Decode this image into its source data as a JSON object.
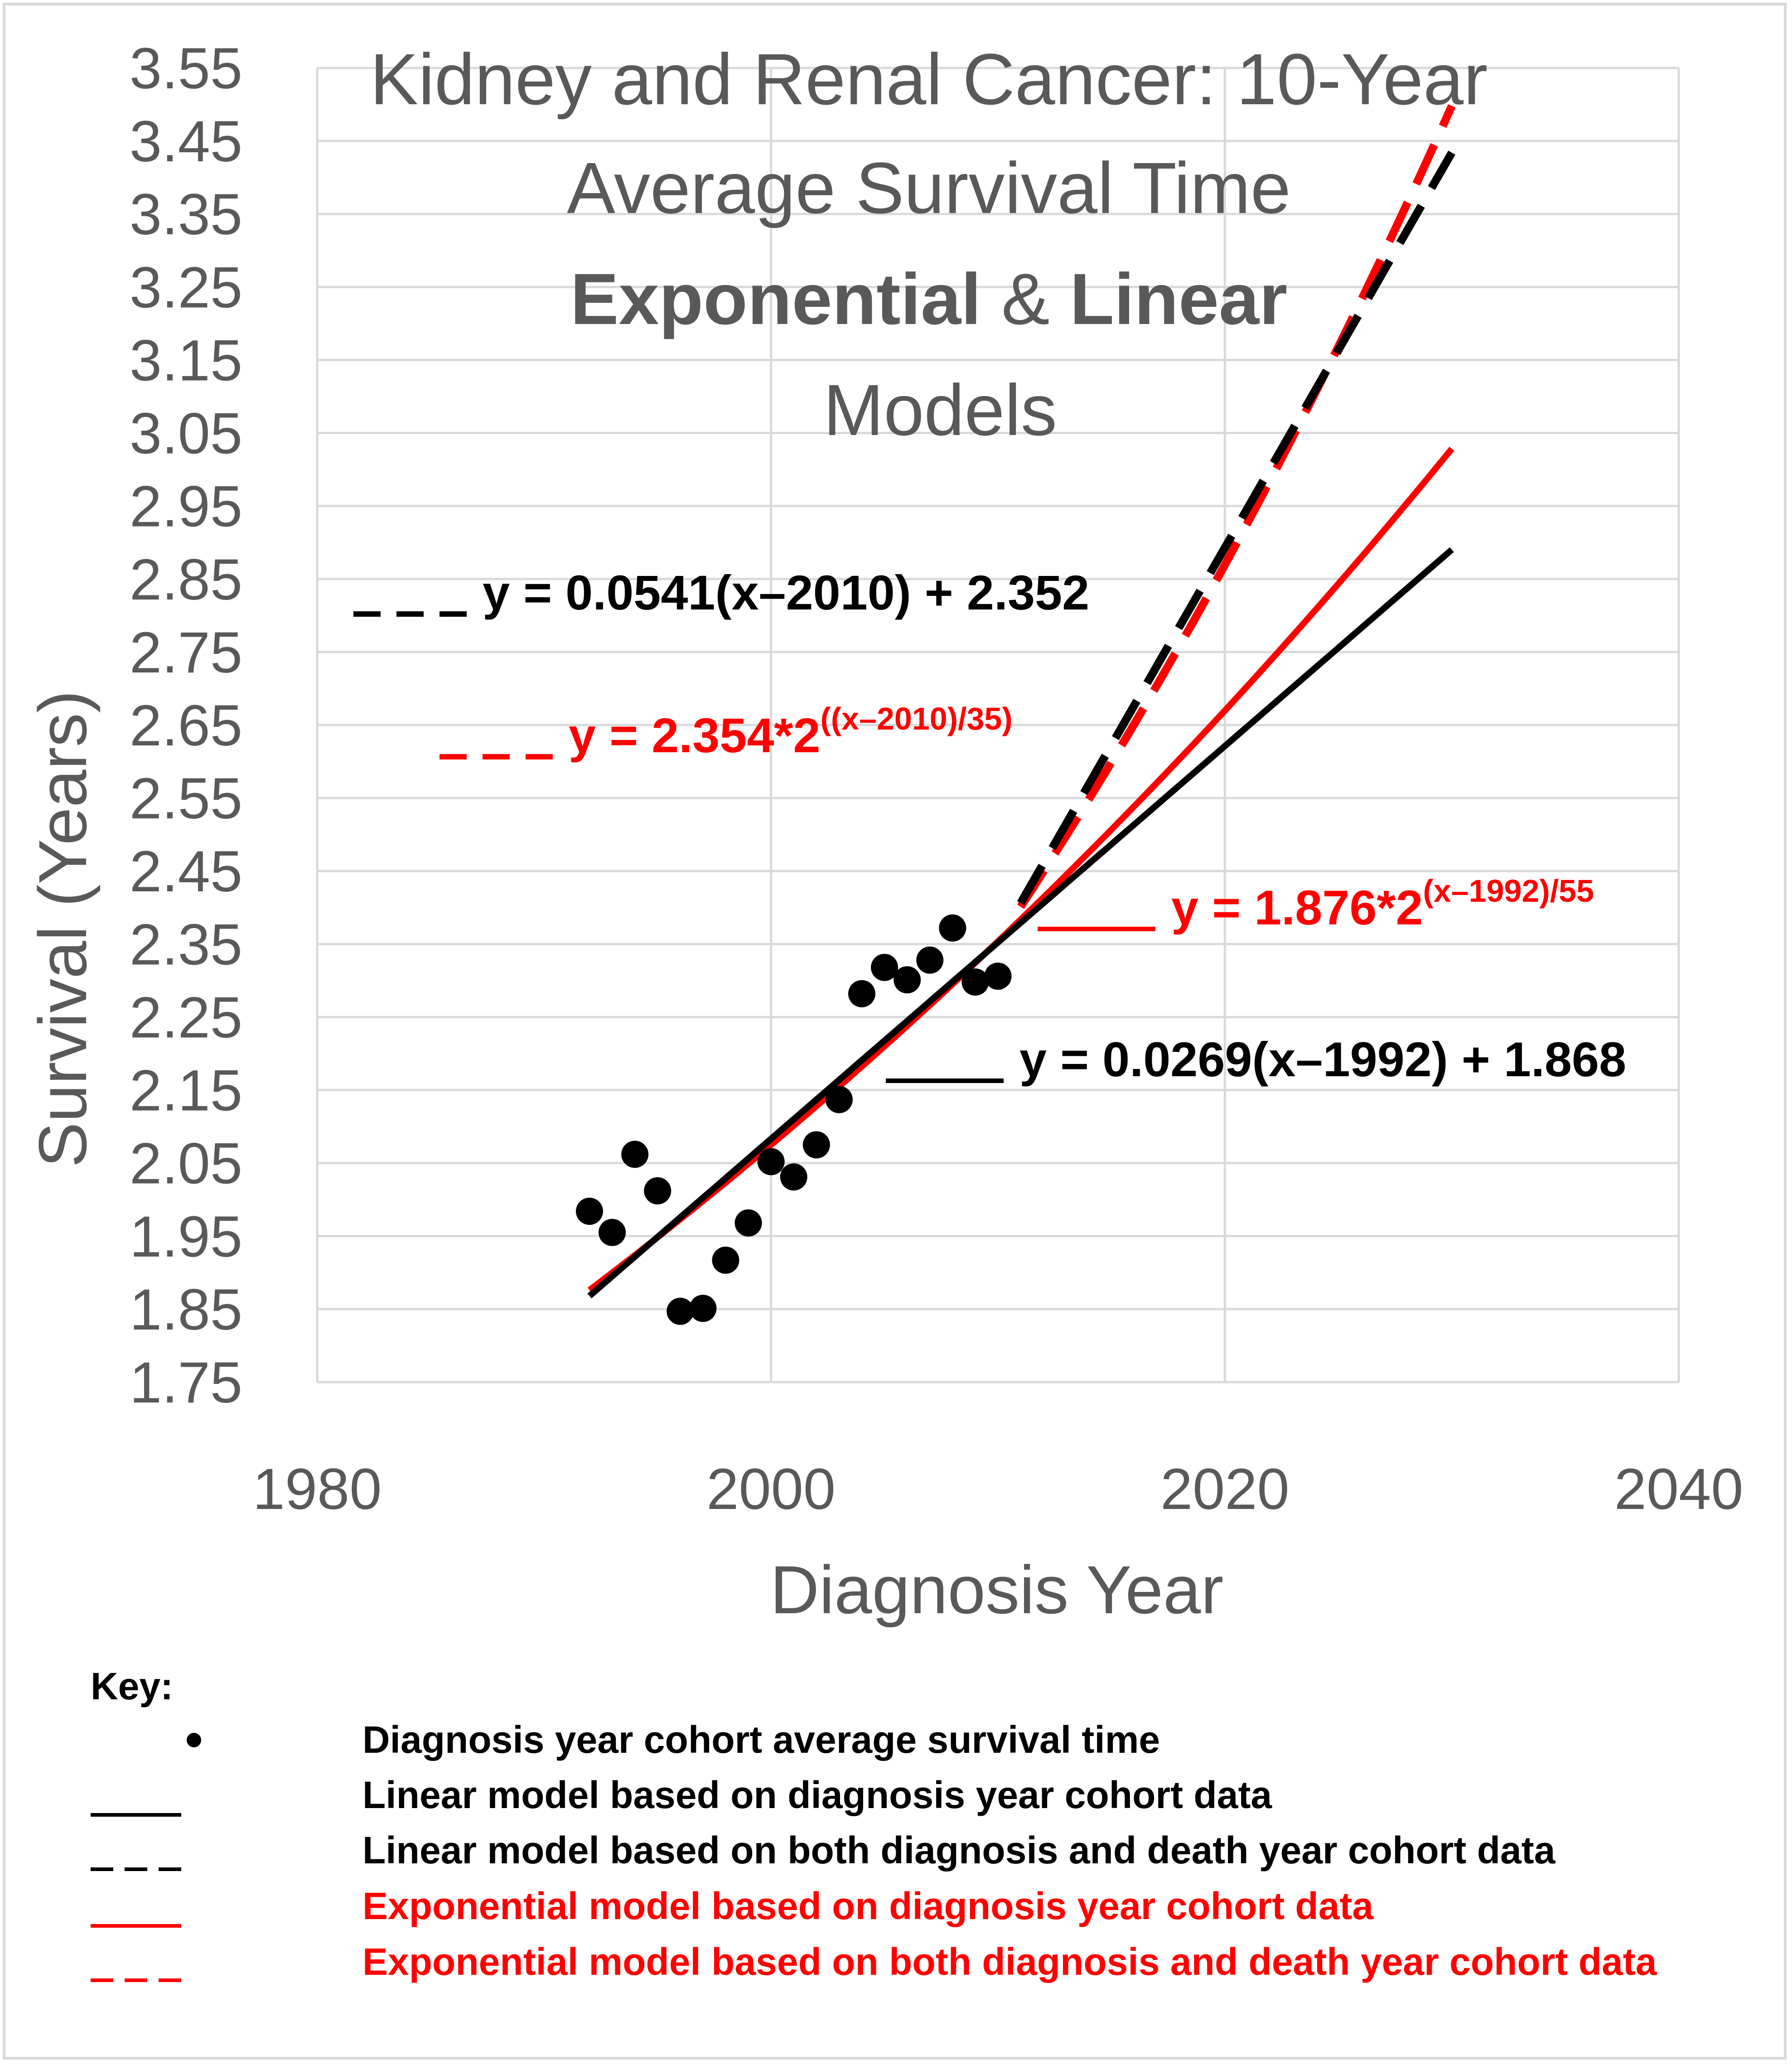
{
  "chart_data": {
    "type": "scatter",
    "title_lines": [
      "Kidney and Renal Cancer: 10-Year",
      "Average Survival Time"
    ],
    "title_model_word_1": "Exponential",
    "title_amp": " & ",
    "title_model_word_2": "Linear",
    "title_last": "Models",
    "xlabel": "Diagnosis Year",
    "ylabel": "Survival (Years)",
    "xlim": [
      1980,
      2040
    ],
    "ylim": [
      1.75,
      3.55
    ],
    "x_ticks": [
      "1980",
      "2000",
      "2020",
      "2040"
    ],
    "y_ticks": [
      "1.75",
      "1.85",
      "1.95",
      "2.05",
      "2.15",
      "2.25",
      "2.35",
      "2.45",
      "2.55",
      "2.65",
      "2.75",
      "2.85",
      "2.95",
      "3.05",
      "3.15",
      "3.25",
      "3.35",
      "3.45",
      "3.55"
    ],
    "points": {
      "name": "Diagnosis year cohort average survival time",
      "x": [
        1992,
        1993,
        1994,
        1995,
        1996,
        1997,
        1998,
        1999,
        2000,
        2001,
        2002,
        2003,
        2004,
        2005,
        2006,
        2007,
        2008,
        2009,
        2010
      ],
      "y": [
        1.984,
        1.955,
        2.062,
        2.012,
        1.847,
        1.851,
        1.917,
        1.968,
        2.052,
        2.031,
        2.075,
        2.137,
        2.282,
        2.318,
        2.301,
        2.328,
        2.372,
        2.298,
        2.306
      ]
    },
    "models": [
      {
        "name": "Linear model based on diagnosis year cohort data",
        "kind": "linear",
        "slope": 0.0269,
        "x0": 1992,
        "intercept": 1.868,
        "x_start": 1992,
        "x_end": 2030,
        "color": "#000000",
        "dashed": false
      },
      {
        "name": "Linear model based on both diagnosis and death year cohort data",
        "kind": "linear",
        "slope": 0.0541,
        "x0": 2010,
        "intercept": 2.352,
        "x_start": 2011,
        "x_end": 2030,
        "color": "#000000",
        "dashed": true
      },
      {
        "name": "Exponential model based on diagnosis year cohort data",
        "kind": "exp",
        "a": 1.876,
        "x0": 1992,
        "half": 55,
        "x_start": 1992,
        "x_end": 2030,
        "color": "#ff0000",
        "dashed": false
      },
      {
        "name": "Exponential model based on both diagnosis and death year cohort data",
        "kind": "exp",
        "a": 2.354,
        "x0": 2010,
        "half": 35,
        "x_start": 2011,
        "x_end": 2030,
        "color": "#ff0000",
        "dashed": true
      }
    ],
    "equations": {
      "linear_dashed": "y = 0.0541(x–2010) + 2.352",
      "exp_dashed_base": "y = 2.354*2",
      "exp_dashed_exp": "((x–2010)/35)",
      "exp_solid_base": "y = 1.876*2",
      "exp_solid_exp": "(x–1992)/55",
      "linear_solid": "y = 0.0269(x–1992) + 1.868"
    },
    "grid": true
  },
  "key": {
    "title": "Key:",
    "items": [
      {
        "label": "Diagnosis year cohort average survival time",
        "color": "#000000"
      },
      {
        "label": "Linear model based on diagnosis year cohort data",
        "color": "#000000"
      },
      {
        "label": "Linear model based on both diagnosis and death year cohort data",
        "color": "#000000"
      },
      {
        "label": "Exponential model based on diagnosis year cohort data",
        "color": "#ff0000"
      },
      {
        "label": "Exponential model based on both diagnosis and death year cohort data",
        "color": "#ff0000"
      }
    ]
  }
}
